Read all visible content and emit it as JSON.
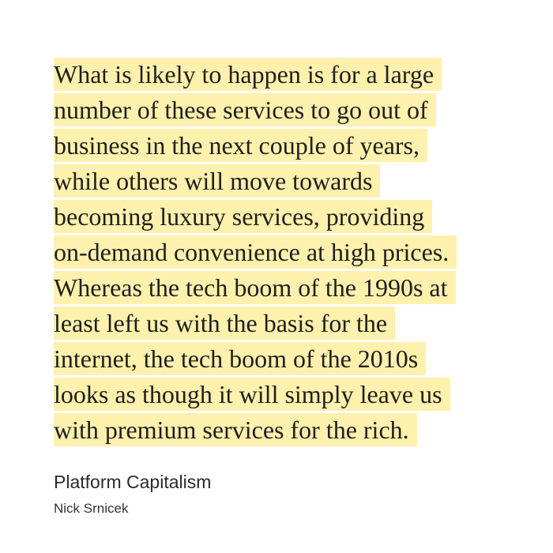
{
  "quote": {
    "lines": [
      "What is likely to happen is for a large",
      "number of these services to go out of",
      "business in the next couple of years,",
      "while others will move towards",
      "becoming luxury services, providing",
      "on-demand convenience at high prices.",
      "Whereas the tech boom of the 1990s at",
      "least left us with the basis for the",
      "internet, the tech boom of the 2010s",
      "looks as though it will simply leave us",
      "with premium services for the rich."
    ]
  },
  "source": {
    "book_title": "Platform Capitalism",
    "author": "Nick Srnicek"
  },
  "colors": {
    "highlight": "#fdf1ad",
    "text": "#1f1f1f"
  }
}
